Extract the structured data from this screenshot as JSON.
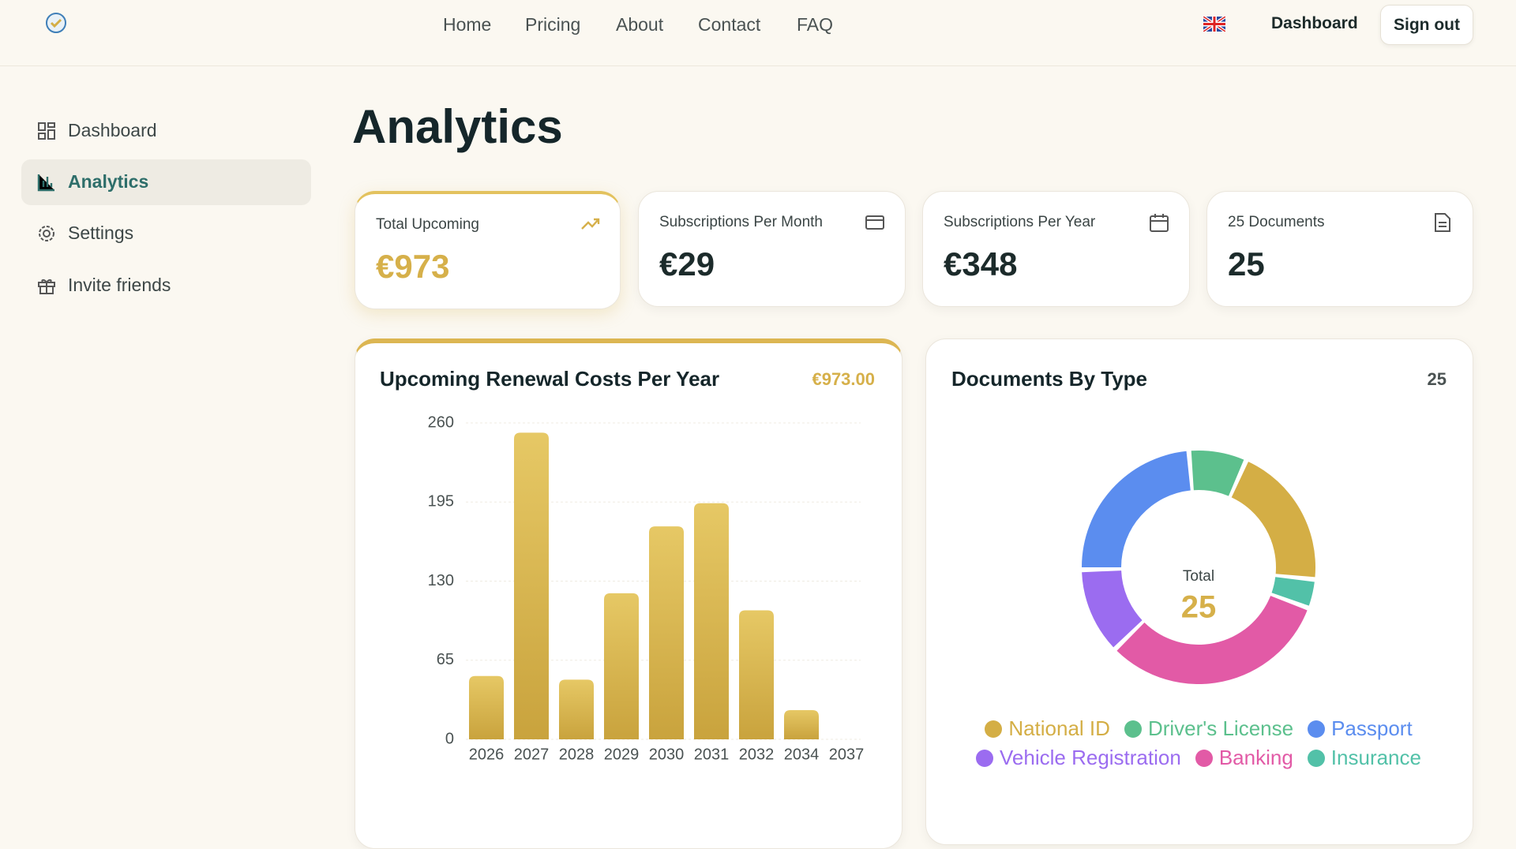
{
  "nav": {
    "links": [
      "Home",
      "Pricing",
      "About",
      "Contact",
      "FAQ"
    ],
    "dashboard": "Dashboard",
    "sign_out": "Sign out"
  },
  "sidebar": {
    "items": [
      "Dashboard",
      "Analytics",
      "Settings",
      "Invite friends"
    ]
  },
  "page_title": "Analytics",
  "stats": [
    {
      "label": "Total Upcoming",
      "value": "€973"
    },
    {
      "label": "Subscriptions Per Month",
      "value": "€29"
    },
    {
      "label": "Subscriptions Per Year",
      "value": "€348"
    },
    {
      "label": "25 Documents",
      "value": "25"
    }
  ],
  "chart_data": [
    {
      "type": "bar",
      "title": "Upcoming Renewal Costs Per Year",
      "total_label": "€973.00",
      "categories": [
        "2026",
        "2027",
        "2028",
        "2029",
        "2030",
        "2031",
        "2032",
        "2034",
        "2037"
      ],
      "values": [
        52,
        252,
        49,
        120,
        175,
        194,
        106,
        24,
        0
      ],
      "color": "#d6b550",
      "ylim": [
        0,
        260
      ],
      "yticks": [
        0,
        65,
        130,
        195,
        260
      ],
      "grid": true
    },
    {
      "type": "pie",
      "title": "Documents By Type",
      "count": 25,
      "center_label": "Total",
      "center_value": 25,
      "series": [
        {
          "name": "National ID",
          "color": "#d4ae45",
          "value": 5
        },
        {
          "name": "Driver's License",
          "color": "#5cc08d",
          "value": 2
        },
        {
          "name": "Passport",
          "color": "#5b8def",
          "value": 6
        },
        {
          "name": "Vehicle Registration",
          "color": "#9b6cf0",
          "value": 3
        },
        {
          "name": "Banking",
          "color": "#e25aa6",
          "value": 8
        },
        {
          "name": "Insurance",
          "color": "#52c1a8",
          "value": 1
        }
      ],
      "legend": "bottom"
    }
  ]
}
